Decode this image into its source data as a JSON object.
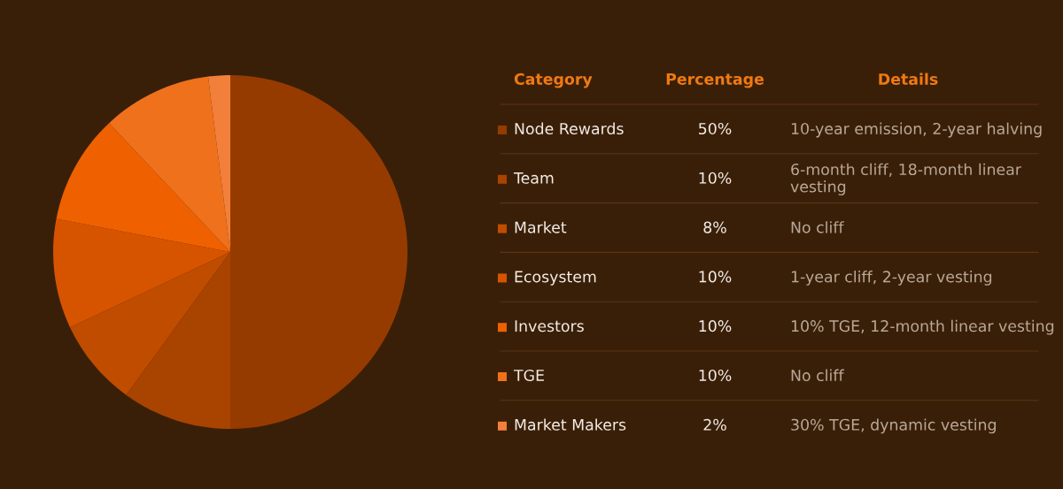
{
  "chart_data": {
    "type": "pie",
    "categories": [
      "Node Rewards",
      "Team",
      "Market",
      "Ecosystem",
      "Investors",
      "TGE",
      "Market Makers"
    ],
    "values": [
      50,
      10,
      8,
      10,
      10,
      10,
      2
    ],
    "value_labels": [
      "50%",
      "10%",
      "8%",
      "10%",
      "10%",
      "10%",
      "2%"
    ],
    "colors": [
      "#963b00",
      "#a84300",
      "#c04c00",
      "#d65400",
      "#ef6100",
      "#ef711c",
      "#f2803a"
    ],
    "annotations": [
      "Category",
      "Percentage",
      "Details",
      "10-year emission, 2-year halving",
      "6-month cliff, 18-month linear vesting",
      "No cliff",
      "1-year cliff, 2-year vesting",
      "10% TGE, 12-month linear vesting",
      "No cliff",
      "30% TGE, dynamic vesting"
    ],
    "legend": "right"
  }
}
